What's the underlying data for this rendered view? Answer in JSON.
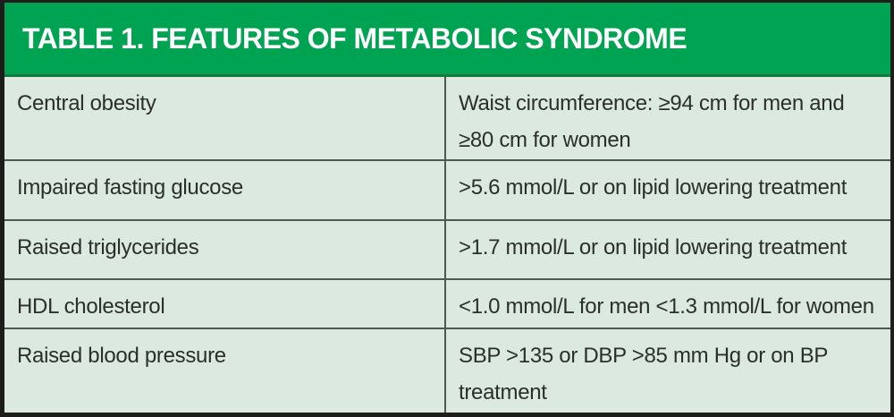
{
  "table": {
    "title": "TABLE 1. FEATURES OF METABOLIC SYNDROME",
    "columns": [
      "feature",
      "criteria"
    ],
    "rows": [
      {
        "feature": "Central obesity",
        "criteria": "Waist circumference: ≥94 cm for men and ≥80 cm for women"
      },
      {
        "feature": "Impaired fasting glucose",
        "criteria": ">5.6 mmol/L or on lipid lowering treatment"
      },
      {
        "feature": "Raised triglycerides",
        "criteria": ">1.7 mmol/L or on lipid lowering treatment"
      },
      {
        "feature": "HDL cholesterol",
        "criteria": "<1.0 mmol/L for men <1.3 mmol/L for women"
      },
      {
        "feature": "Raised blood pressure",
        "criteria": "SBP >135 or DBP >85 mm Hg or on BP treatment"
      }
    ]
  },
  "colors": {
    "header_bg": "#00a351",
    "header_underline": "#157a40",
    "header_text": "#ffffff",
    "body_bg": "#dce9e0",
    "divider": "#4e584f",
    "outer_border": "#1d1d1b",
    "text": "#2a2f2b"
  }
}
